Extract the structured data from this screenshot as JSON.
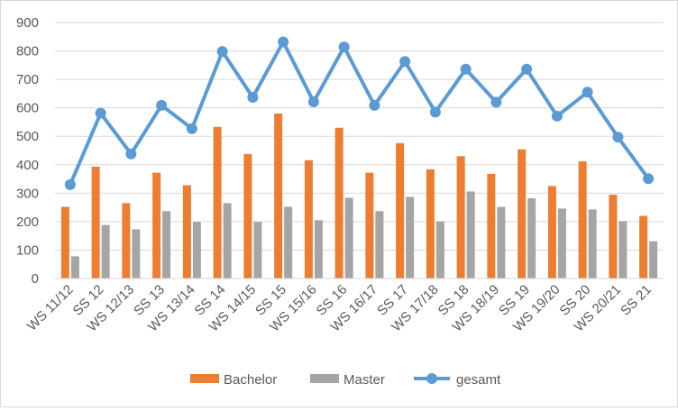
{
  "chart_data": {
    "type": "bar",
    "categories": [
      "WS 11/12",
      "SS 12",
      "WS 12/13",
      "SS 13",
      "WS 13/14",
      "SS 14",
      "WS 14/15",
      "SS 15",
      "WS 15/16",
      "SS 16",
      "WS 16/17",
      "SS 17",
      "WS 17/18",
      "SS 18",
      "WS 18/19",
      "SS 19",
      "WS 19/20",
      "SS 20",
      "WS 20/21",
      "SS 21"
    ],
    "series": [
      {
        "name": "Bachelor",
        "type": "bar",
        "color": "#ed7d31",
        "values": [
          252,
          393,
          265,
          372,
          328,
          533,
          438,
          580,
          416,
          530,
          372,
          476,
          384,
          430,
          368,
          454,
          325,
          412,
          295,
          220
        ]
      },
      {
        "name": "Master",
        "type": "bar",
        "color": "#a5a5a5",
        "values": [
          78,
          188,
          173,
          237,
          199,
          265,
          199,
          252,
          205,
          284,
          237,
          287,
          201,
          306,
          252,
          282,
          246,
          243,
          202,
          131
        ]
      },
      {
        "name": "gesamt",
        "type": "line",
        "color": "#5b9bd5",
        "values": [
          330,
          581,
          438,
          609,
          527,
          798,
          637,
          832,
          621,
          814,
          609,
          763,
          585,
          736,
          620,
          736,
          571,
          655,
          497,
          351
        ]
      }
    ],
    "ylim": [
      0,
      900
    ],
    "yticks": [
      0,
      100,
      200,
      300,
      400,
      500,
      600,
      700,
      800,
      900
    ],
    "grid": true,
    "legend_position": "bottom"
  }
}
